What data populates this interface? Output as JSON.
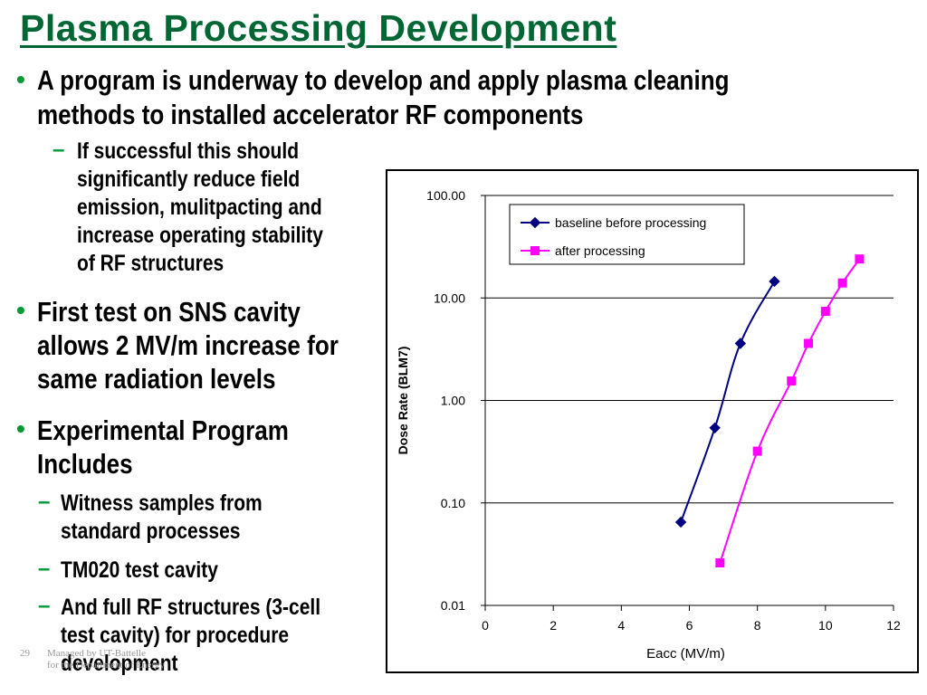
{
  "slide": {
    "title": "Plasma Processing Development",
    "bullets": {
      "b1": [
        "A program is underway to develop and apply plasma cleaning",
        "methods to installed accelerator RF components"
      ],
      "s1": [
        "If successful this should",
        "significantly reduce field",
        "emission, mulitpacting and",
        "increase operating stability",
        "of RF structures"
      ],
      "b2": [
        "First test on SNS cavity",
        "allows 2 MV/m increase for",
        "same radiation levels"
      ],
      "b3": [
        "Experimental Program",
        "Includes"
      ],
      "s2": [
        "Witness samples from",
        "standard processes"
      ],
      "s3": [
        "TM020 test cavity"
      ],
      "s4": [
        "And full RF structures (3-cell",
        "test cavity) for procedure",
        "development"
      ]
    },
    "bullet_glyph": "•",
    "dash_glyph": "–",
    "footer": {
      "page_number": "29",
      "line1": "Managed by UT-Battelle",
      "line2": "for the Department of Energy"
    },
    "colors": {
      "title": "#006633",
      "bullet": "#009933",
      "baseline": "#000080",
      "after": "#FF00FF"
    }
  },
  "chart_data": {
    "type": "line",
    "xlabel": "Eacc (MV/m)",
    "ylabel": "Dose Rate (BLM7)",
    "xlim": [
      0,
      12
    ],
    "ylim": [
      0.01,
      100
    ],
    "yscale": "log",
    "x_ticks": [
      "0",
      "2",
      "4",
      "6",
      "8",
      "10",
      "12"
    ],
    "y_ticks": [
      "100.00",
      "10.00",
      "1.00",
      "0.10",
      "0.01"
    ],
    "grid": "horizontal major lines",
    "legend": "top-left inside plot",
    "series": [
      {
        "name": "baseline before processing",
        "color": "#000080",
        "marker": "diamond",
        "points": [
          [
            5.75,
            0.065
          ],
          [
            6.75,
            0.54
          ],
          [
            7.5,
            3.6
          ],
          [
            8.5,
            14.5
          ]
        ]
      },
      {
        "name": "after processing",
        "color": "#FF00FF",
        "marker": "square",
        "points": [
          [
            6.9,
            0.026
          ],
          [
            8.0,
            0.32
          ],
          [
            9.0,
            1.55
          ],
          [
            9.5,
            3.6
          ],
          [
            10.0,
            7.4
          ],
          [
            10.5,
            14.0
          ],
          [
            11.0,
            24.0
          ]
        ]
      }
    ]
  }
}
